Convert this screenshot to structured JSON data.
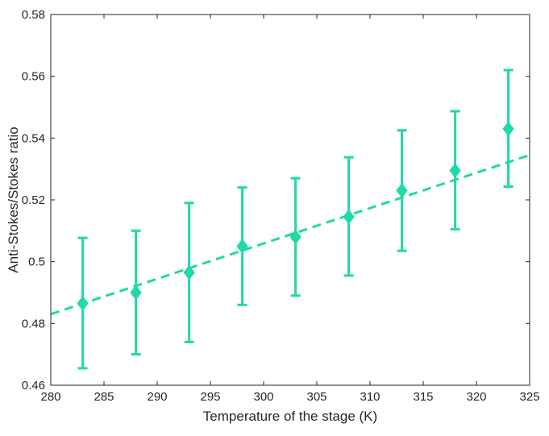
{
  "chart_data": {
    "type": "scatter",
    "title": "",
    "xlabel": "Temperature of the stage (K)",
    "ylabel": "Anti-Stokes/Stokes ratio",
    "xlim": [
      280,
      325
    ],
    "ylim": [
      0.46,
      0.58
    ],
    "x_ticks": [
      280,
      285,
      290,
      295,
      300,
      305,
      310,
      315,
      320,
      325
    ],
    "y_ticks": [
      0.46,
      0.48,
      0.5,
      0.52,
      0.54,
      0.56,
      0.58
    ],
    "x_tick_labels": [
      "280",
      "285",
      "290",
      "295",
      "300",
      "305",
      "310",
      "315",
      "320",
      "325"
    ],
    "y_tick_labels": [
      "0.46",
      "0.48",
      "0.5",
      "0.52",
      "0.54",
      "0.56",
      "0.58"
    ],
    "grid": false,
    "legend": "none",
    "color": "#1fd9a6",
    "series": [
      {
        "marker": "diamond",
        "x": [
          283,
          288,
          293,
          298,
          303,
          308,
          313,
          318,
          323
        ],
        "y": [
          0.4865,
          0.49,
          0.4965,
          0.505,
          0.508,
          0.5145,
          0.523,
          0.5295,
          0.543
        ],
        "err_low": [
          0.4655,
          0.47,
          0.474,
          0.486,
          0.489,
          0.4955,
          0.5035,
          0.5105,
          0.5243
        ],
        "err_high": [
          0.5077,
          0.51,
          0.519,
          0.524,
          0.527,
          0.5338,
          0.5425,
          0.5487,
          0.562
        ]
      }
    ],
    "fit_line": {
      "style": "dashed",
      "x": [
        280,
        325
      ],
      "y": [
        0.483,
        0.5345
      ]
    }
  }
}
